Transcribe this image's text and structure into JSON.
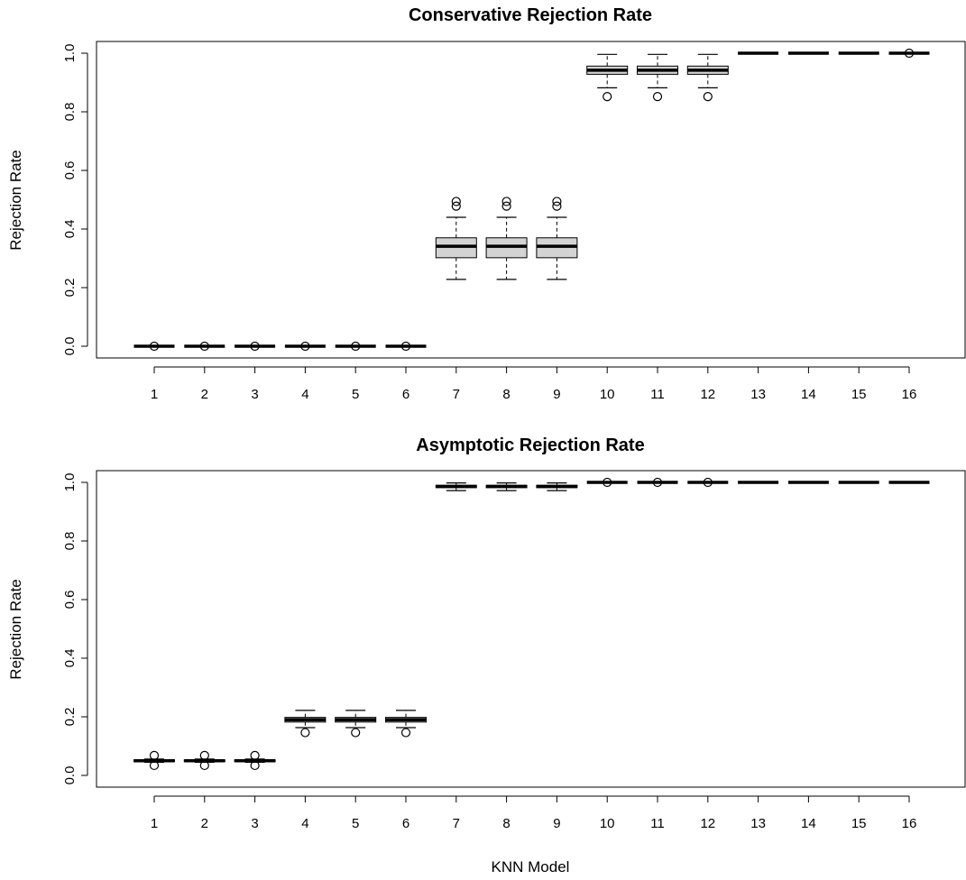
{
  "figure": {
    "shared_xlabel": "KNN Model"
  },
  "chart_data": [
    {
      "type": "boxplot",
      "title": "Conservative Rejection Rate",
      "xlabel": "",
      "ylabel": "Rejection Rate",
      "categories": [
        "1",
        "2",
        "3",
        "4",
        "5",
        "6",
        "7",
        "8",
        "9",
        "10",
        "11",
        "12",
        "13",
        "14",
        "15",
        "16"
      ],
      "y_ticks": [
        "0.0",
        "0.2",
        "0.4",
        "0.6",
        "0.8",
        "1.0"
      ],
      "ylim": [
        -0.04,
        1.04
      ],
      "grid": false,
      "boxes": [
        {
          "whisker_low": 0.0,
          "q1": 0.0,
          "median": 0.0,
          "q3": 0.0,
          "whisker_high": 0.0,
          "outliers": [
            0.0
          ],
          "fill": false
        },
        {
          "whisker_low": 0.0,
          "q1": 0.0,
          "median": 0.0,
          "q3": 0.0,
          "whisker_high": 0.0,
          "outliers": [
            0.0
          ],
          "fill": false
        },
        {
          "whisker_low": 0.0,
          "q1": 0.0,
          "median": 0.0,
          "q3": 0.0,
          "whisker_high": 0.0,
          "outliers": [
            0.0
          ],
          "fill": false
        },
        {
          "whisker_low": 0.0,
          "q1": 0.0,
          "median": 0.0,
          "q3": 0.0,
          "whisker_high": 0.0,
          "outliers": [
            0.0
          ],
          "fill": false
        },
        {
          "whisker_low": 0.0,
          "q1": 0.0,
          "median": 0.0,
          "q3": 0.0,
          "whisker_high": 0.0,
          "outliers": [
            0.0
          ],
          "fill": false
        },
        {
          "whisker_low": 0.0,
          "q1": 0.0,
          "median": 0.0,
          "q3": 0.0,
          "whisker_high": 0.0,
          "outliers": [
            0.0
          ],
          "fill": false
        },
        {
          "whisker_low": 0.228,
          "q1": 0.302,
          "median": 0.341,
          "q3": 0.37,
          "whisker_high": 0.44,
          "outliers": [
            0.478,
            0.494
          ],
          "fill": true
        },
        {
          "whisker_low": 0.228,
          "q1": 0.302,
          "median": 0.341,
          "q3": 0.37,
          "whisker_high": 0.44,
          "outliers": [
            0.478,
            0.494
          ],
          "fill": true
        },
        {
          "whisker_low": 0.228,
          "q1": 0.302,
          "median": 0.341,
          "q3": 0.37,
          "whisker_high": 0.44,
          "outliers": [
            0.478,
            0.494
          ],
          "fill": true
        },
        {
          "whisker_low": 0.882,
          "q1": 0.928,
          "median": 0.942,
          "q3": 0.956,
          "whisker_high": 0.996,
          "outliers": [
            0.852
          ],
          "fill": true
        },
        {
          "whisker_low": 0.882,
          "q1": 0.928,
          "median": 0.942,
          "q3": 0.956,
          "whisker_high": 0.996,
          "outliers": [
            0.852
          ],
          "fill": true
        },
        {
          "whisker_low": 0.882,
          "q1": 0.928,
          "median": 0.942,
          "q3": 0.956,
          "whisker_high": 0.996,
          "outliers": [
            0.852
          ],
          "fill": true
        },
        {
          "whisker_low": 1.0,
          "q1": 1.0,
          "median": 1.0,
          "q3": 1.0,
          "whisker_high": 1.0,
          "outliers": [],
          "fill": false
        },
        {
          "whisker_low": 1.0,
          "q1": 1.0,
          "median": 1.0,
          "q3": 1.0,
          "whisker_high": 1.0,
          "outliers": [],
          "fill": false
        },
        {
          "whisker_low": 1.0,
          "q1": 1.0,
          "median": 1.0,
          "q3": 1.0,
          "whisker_high": 1.0,
          "outliers": [],
          "fill": false
        },
        {
          "whisker_low": 1.0,
          "q1": 1.0,
          "median": 1.0,
          "q3": 1.0,
          "whisker_high": 1.0,
          "outliers": [
            1.0
          ],
          "fill": false
        }
      ]
    },
    {
      "type": "boxplot",
      "title": "Asymptotic Rejection Rate",
      "xlabel": "KNN Model",
      "ylabel": "Rejection Rate",
      "categories": [
        "1",
        "2",
        "3",
        "4",
        "5",
        "6",
        "7",
        "8",
        "9",
        "10",
        "11",
        "12",
        "13",
        "14",
        "15",
        "16"
      ],
      "y_ticks": [
        "0.0",
        "0.2",
        "0.4",
        "0.6",
        "0.8",
        "1.0"
      ],
      "ylim": [
        -0.04,
        1.04
      ],
      "grid": false,
      "boxes": [
        {
          "whisker_low": 0.045,
          "q1": 0.047,
          "median": 0.05,
          "q3": 0.053,
          "whisker_high": 0.056,
          "outliers": [
            0.034,
            0.068
          ],
          "fill": true
        },
        {
          "whisker_low": 0.045,
          "q1": 0.047,
          "median": 0.05,
          "q3": 0.053,
          "whisker_high": 0.056,
          "outliers": [
            0.034,
            0.068
          ],
          "fill": true
        },
        {
          "whisker_low": 0.045,
          "q1": 0.047,
          "median": 0.05,
          "q3": 0.053,
          "whisker_high": 0.056,
          "outliers": [
            0.034,
            0.068
          ],
          "fill": true
        },
        {
          "whisker_low": 0.163,
          "q1": 0.182,
          "median": 0.19,
          "q3": 0.198,
          "whisker_high": 0.222,
          "outliers": [
            0.146
          ],
          "fill": true
        },
        {
          "whisker_low": 0.163,
          "q1": 0.182,
          "median": 0.19,
          "q3": 0.198,
          "whisker_high": 0.222,
          "outliers": [
            0.146
          ],
          "fill": true
        },
        {
          "whisker_low": 0.163,
          "q1": 0.182,
          "median": 0.19,
          "q3": 0.198,
          "whisker_high": 0.222,
          "outliers": [
            0.146
          ],
          "fill": true
        },
        {
          "whisker_low": 0.972,
          "q1": 0.982,
          "median": 0.986,
          "q3": 0.99,
          "whisker_high": 0.998,
          "outliers": [],
          "fill": true
        },
        {
          "whisker_low": 0.972,
          "q1": 0.982,
          "median": 0.986,
          "q3": 0.99,
          "whisker_high": 0.998,
          "outliers": [],
          "fill": true
        },
        {
          "whisker_low": 0.972,
          "q1": 0.982,
          "median": 0.986,
          "q3": 0.99,
          "whisker_high": 0.998,
          "outliers": [],
          "fill": true
        },
        {
          "whisker_low": 1.0,
          "q1": 1.0,
          "median": 1.0,
          "q3": 1.0,
          "whisker_high": 1.0,
          "outliers": [
            1.0
          ],
          "fill": false
        },
        {
          "whisker_low": 1.0,
          "q1": 1.0,
          "median": 1.0,
          "q3": 1.0,
          "whisker_high": 1.0,
          "outliers": [
            1.0
          ],
          "fill": false
        },
        {
          "whisker_low": 1.0,
          "q1": 1.0,
          "median": 1.0,
          "q3": 1.0,
          "whisker_high": 1.0,
          "outliers": [
            1.0
          ],
          "fill": false
        },
        {
          "whisker_low": 1.0,
          "q1": 1.0,
          "median": 1.0,
          "q3": 1.0,
          "whisker_high": 1.0,
          "outliers": [],
          "fill": false
        },
        {
          "whisker_low": 1.0,
          "q1": 1.0,
          "median": 1.0,
          "q3": 1.0,
          "whisker_high": 1.0,
          "outliers": [],
          "fill": false
        },
        {
          "whisker_low": 1.0,
          "q1": 1.0,
          "median": 1.0,
          "q3": 1.0,
          "whisker_high": 1.0,
          "outliers": [],
          "fill": false
        },
        {
          "whisker_low": 1.0,
          "q1": 1.0,
          "median": 1.0,
          "q3": 1.0,
          "whisker_high": 1.0,
          "outliers": [],
          "fill": false
        }
      ]
    }
  ],
  "style": {
    "box_fill": "#d3d3d3",
    "line_color": "#000000",
    "background": "#ffffff"
  }
}
